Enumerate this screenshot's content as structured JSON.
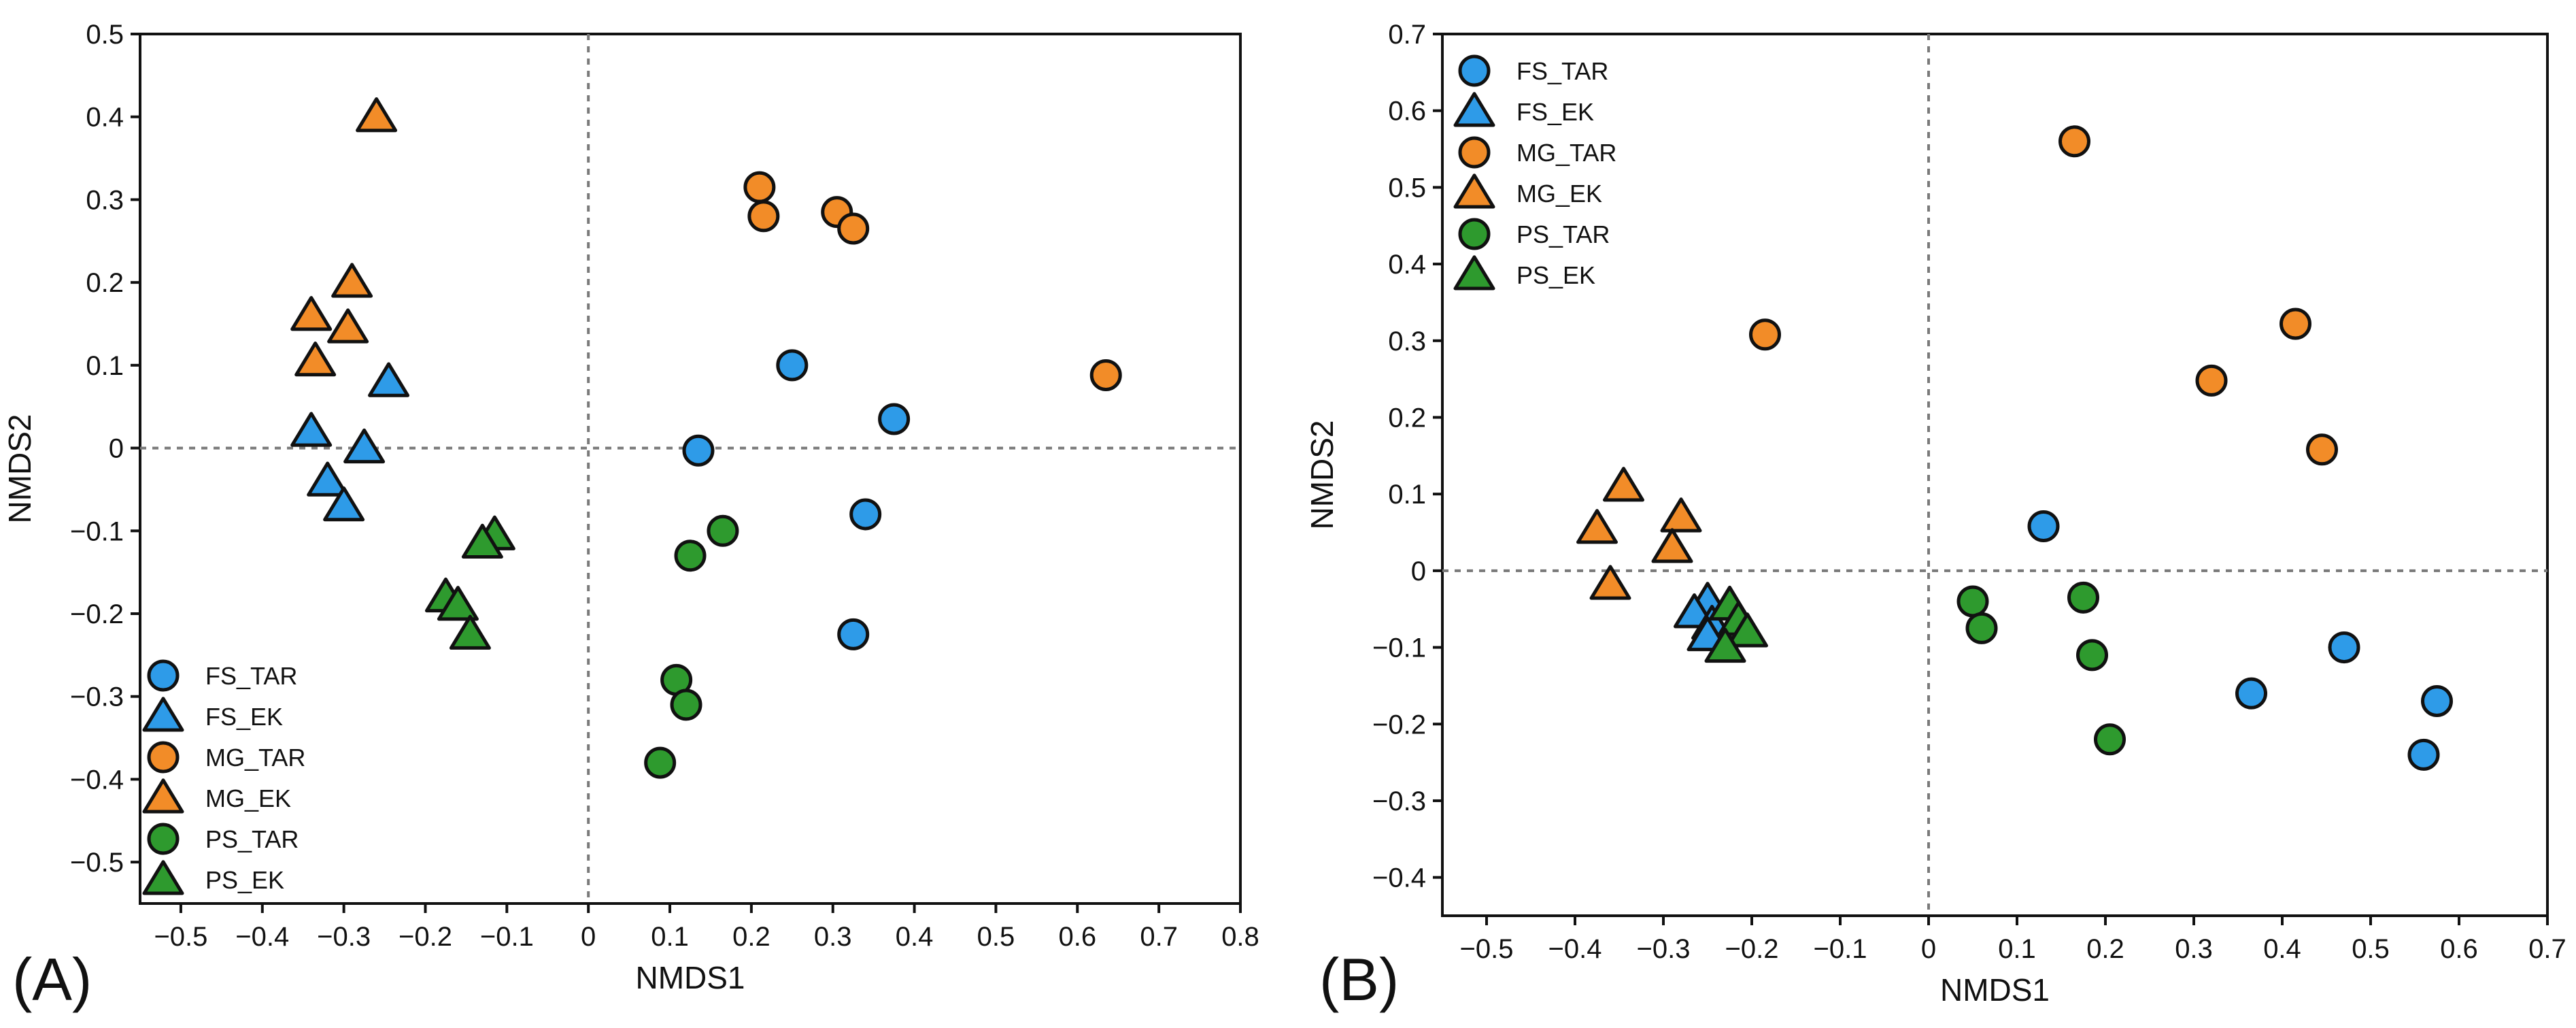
{
  "colors": {
    "FS": "#2E9BE8",
    "MG": "#F28C28",
    "PS": "#2E9A2E",
    "axis": "#111111",
    "refline": "#7a7a7a"
  },
  "chart_data": [
    {
      "panel_label": "(A)",
      "type": "scatter",
      "xlabel": "NMDS1",
      "ylabel": "NMDS2",
      "xlim": [
        -0.55,
        0.8
      ],
      "ylim": [
        -0.55,
        0.5
      ],
      "xticks": [
        -0.5,
        -0.4,
        -0.3,
        -0.2,
        -0.1,
        0,
        0.1,
        0.2,
        0.3,
        0.4,
        0.5,
        0.6,
        0.7,
        0.8
      ],
      "xtick_labels": [
        "−0.5",
        "−0.4",
        "−0.3",
        "−0.2",
        "−0.1",
        "0",
        "0.1",
        "0.2",
        "0.3",
        "0.4",
        "0.5",
        "0.6",
        "0.7",
        "0.8"
      ],
      "yticks": [
        0.5,
        0.4,
        0.3,
        0.2,
        0.1,
        0,
        -0.1,
        -0.2,
        -0.3,
        -0.4,
        -0.5
      ],
      "ytick_labels": [
        "0.5",
        "0.4",
        "0.3",
        "0.2",
        "0.1",
        "0",
        "−0.1",
        "−0.2",
        "−0.3",
        "−0.4",
        "−0.5"
      ],
      "reference_lines": {
        "x": 0,
        "y": 0
      },
      "legend_position": "bottom-left",
      "series": [
        {
          "name": "FS_TAR",
          "group": "FS",
          "marker": "circle",
          "points": [
            [
              0.25,
              0.1
            ],
            [
              0.375,
              0.035
            ],
            [
              0.135,
              -0.003
            ],
            [
              0.34,
              -0.08
            ],
            [
              0.325,
              -0.225
            ]
          ]
        },
        {
          "name": "FS_EK",
          "group": "FS",
          "marker": "triangle",
          "points": [
            [
              -0.245,
              0.08
            ],
            [
              -0.34,
              0.02
            ],
            [
              -0.275,
              0.0
            ],
            [
              -0.32,
              -0.04
            ],
            [
              -0.3,
              -0.07
            ]
          ]
        },
        {
          "name": "MG_TAR",
          "group": "MG",
          "marker": "circle",
          "points": [
            [
              0.21,
              0.315
            ],
            [
              0.215,
              0.28
            ],
            [
              0.305,
              0.285
            ],
            [
              0.325,
              0.265
            ],
            [
              0.635,
              0.088
            ]
          ]
        },
        {
          "name": "MG_EK",
          "group": "MG",
          "marker": "triangle",
          "points": [
            [
              -0.26,
              0.4
            ],
            [
              -0.29,
              0.2
            ],
            [
              -0.34,
              0.16
            ],
            [
              -0.295,
              0.145
            ],
            [
              -0.335,
              0.105
            ]
          ]
        },
        {
          "name": "PS_TAR",
          "group": "PS",
          "marker": "circle",
          "points": [
            [
              0.165,
              -0.1
            ],
            [
              0.125,
              -0.13
            ],
            [
              0.108,
              -0.28
            ],
            [
              0.12,
              -0.31
            ],
            [
              0.088,
              -0.38
            ]
          ]
        },
        {
          "name": "PS_EK",
          "group": "PS",
          "marker": "triangle",
          "points": [
            [
              -0.115,
              -0.105
            ],
            [
              -0.13,
              -0.115
            ],
            [
              -0.175,
              -0.18
            ],
            [
              -0.16,
              -0.19
            ],
            [
              -0.145,
              -0.225
            ]
          ]
        }
      ]
    },
    {
      "panel_label": "(B)",
      "type": "scatter",
      "xlabel": "NMDS1",
      "ylabel": "NMDS2",
      "xlim": [
        -0.55,
        0.7
      ],
      "ylim": [
        -0.45,
        0.7
      ],
      "xticks": [
        -0.5,
        -0.4,
        -0.3,
        -0.2,
        -0.1,
        0,
        0.1,
        0.2,
        0.3,
        0.4,
        0.5,
        0.6,
        0.7
      ],
      "xtick_labels": [
        "−0.5",
        "−0.4",
        "−0.3",
        "−0.2",
        "−0.1",
        "0",
        "0.1",
        "0.2",
        "0.3",
        "0.4",
        "0.5",
        "0.6",
        "0.7"
      ],
      "yticks": [
        0.7,
        0.6,
        0.5,
        0.4,
        0.3,
        0.2,
        0.1,
        0,
        -0.1,
        -0.2,
        -0.3,
        -0.4
      ],
      "ytick_labels": [
        "0.7",
        "0.6",
        "0.5",
        "0.4",
        "0.3",
        "0.2",
        "0.1",
        "0",
        "−0.1",
        "−0.2",
        "−0.3",
        "−0.4"
      ],
      "reference_lines": {
        "x": 0,
        "y": 0
      },
      "legend_position": "top-left",
      "series": [
        {
          "name": "FS_TAR",
          "group": "FS",
          "marker": "circle",
          "points": [
            [
              0.13,
              0.058
            ],
            [
              0.47,
              -0.1
            ],
            [
              0.365,
              -0.16
            ],
            [
              0.575,
              -0.17
            ],
            [
              0.56,
              -0.24
            ]
          ]
        },
        {
          "name": "FS_EK",
          "group": "FS",
          "marker": "triangle",
          "points": [
            [
              -0.25,
              -0.04
            ],
            [
              -0.265,
              -0.055
            ],
            [
              -0.245,
              -0.07
            ],
            [
              -0.25,
              -0.085
            ]
          ]
        },
        {
          "name": "MG_TAR",
          "group": "MG",
          "marker": "circle",
          "points": [
            [
              0.165,
              0.56
            ],
            [
              0.415,
              0.322
            ],
            [
              0.32,
              0.248
            ],
            [
              0.445,
              0.158
            ],
            [
              -0.185,
              0.308
            ]
          ]
        },
        {
          "name": "MG_EK",
          "group": "MG",
          "marker": "triangle",
          "points": [
            [
              -0.345,
              0.11
            ],
            [
              -0.28,
              0.07
            ],
            [
              -0.375,
              0.055
            ],
            [
              -0.29,
              0.03
            ],
            [
              -0.36,
              -0.018
            ]
          ]
        },
        {
          "name": "PS_TAR",
          "group": "PS",
          "marker": "circle",
          "points": [
            [
              0.05,
              -0.04
            ],
            [
              0.06,
              -0.075
            ],
            [
              0.175,
              -0.035
            ],
            [
              0.185,
              -0.11
            ],
            [
              0.205,
              -0.22
            ]
          ]
        },
        {
          "name": "PS_EK",
          "group": "PS",
          "marker": "triangle",
          "points": [
            [
              -0.225,
              -0.045
            ],
            [
              -0.215,
              -0.065
            ],
            [
              -0.205,
              -0.08
            ],
            [
              -0.23,
              -0.1
            ]
          ]
        }
      ]
    }
  ]
}
